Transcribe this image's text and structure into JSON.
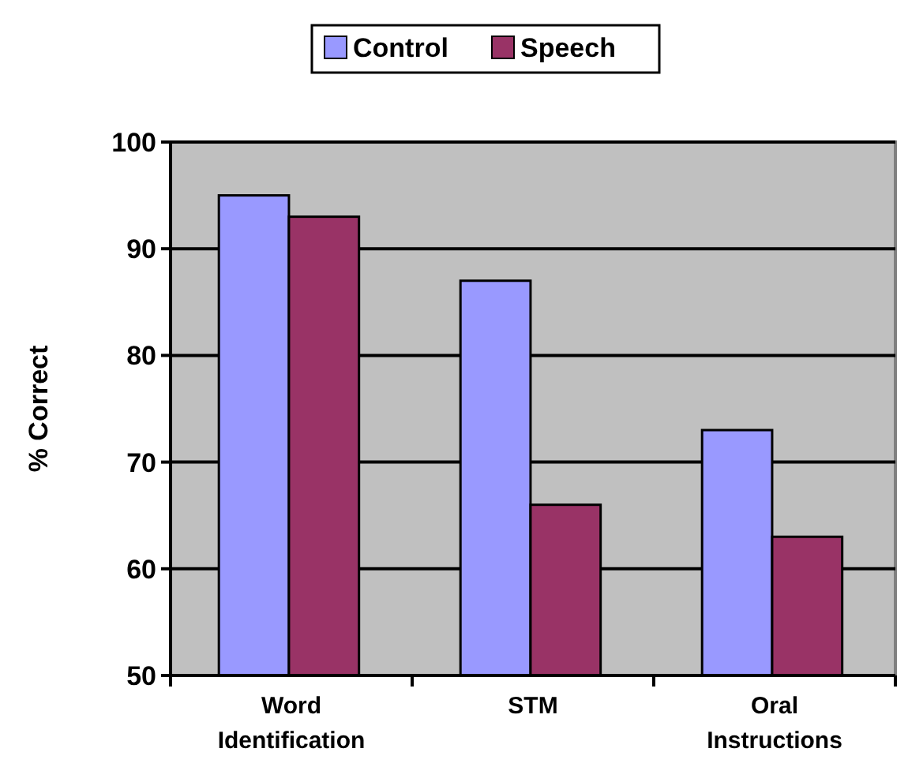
{
  "chart_data": {
    "type": "bar",
    "ylabel": "% Correct",
    "categories": [
      "Word Identification",
      "STM",
      "Oral Instructions"
    ],
    "series": [
      {
        "name": "Control",
        "color": "#9999ff",
        "values": [
          95,
          87,
          73
        ]
      },
      {
        "name": "Speech",
        "color": "#993366",
        "values": [
          93,
          66,
          63
        ]
      }
    ],
    "ylim": [
      50,
      100
    ],
    "yticks": [
      50,
      60,
      70,
      80,
      90,
      100
    ],
    "grid": "y",
    "legend": "top"
  }
}
